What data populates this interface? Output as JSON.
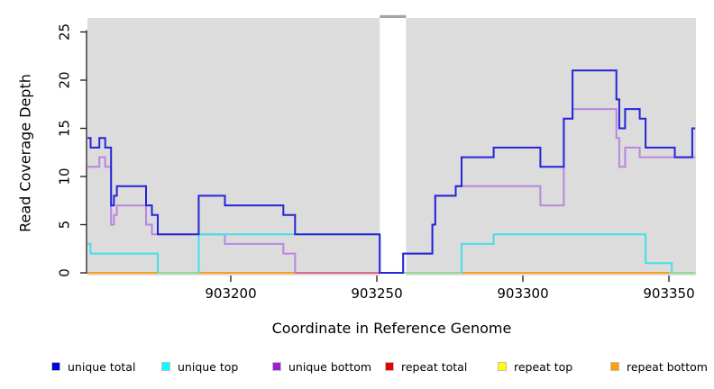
{
  "chart_data": {
    "type": "line",
    "subtype": "step",
    "title": "",
    "xlabel": "Coordinate in Reference Genome",
    "ylabel": "Read Coverage Depth",
    "xlim": [
      903151,
      903359
    ],
    "ylim": [
      0,
      26.5
    ],
    "x_ticks": [
      "903200",
      "903250",
      "903300",
      "903350"
    ],
    "x_tick_values": [
      903200,
      903250,
      903300,
      903350
    ],
    "y_ticks": [
      "0",
      "5",
      "10",
      "15",
      "20",
      "25"
    ],
    "y_tick_values": [
      0,
      5,
      10,
      15,
      20,
      25
    ],
    "grid": false,
    "plot_background": "#dcdcdc",
    "no_data_gap": {
      "from": 903251,
      "to": 903260,
      "top_edge_color": "#a3a3a3"
    },
    "legend_position": "bottom",
    "series": [
      {
        "name": "repeat total",
        "color": "#cc2020",
        "points": [
          [
            903151,
            0
          ],
          [
            903350,
            0
          ]
        ]
      },
      {
        "name": "repeat top",
        "color": "#f0e020",
        "points": [
          [
            903151,
            0
          ],
          [
            903350,
            0
          ]
        ]
      },
      {
        "name": "repeat bottom",
        "color": "#ff9d1e",
        "points": [
          [
            903151,
            0
          ],
          [
            903350,
            0
          ]
        ]
      },
      {
        "name": "unique bottom",
        "color": "#bb85e0",
        "points": [
          [
            903151,
            11
          ],
          [
            903155,
            12
          ],
          [
            903157,
            11
          ],
          [
            903159,
            5
          ],
          [
            903160,
            6
          ],
          [
            903161,
            7
          ],
          [
            903171,
            5
          ],
          [
            903173,
            4
          ],
          [
            903198,
            3
          ],
          [
            903218,
            2
          ],
          [
            903222,
            0
          ],
          [
            903259,
            2
          ],
          [
            903269,
            5
          ],
          [
            903270,
            8
          ],
          [
            903277,
            9
          ],
          [
            903306,
            7
          ],
          [
            903314,
            16
          ],
          [
            903317,
            17
          ],
          [
            903332,
            14
          ],
          [
            903333,
            11
          ],
          [
            903335,
            13
          ],
          [
            903340,
            12
          ],
          [
            903359,
            12
          ]
        ]
      },
      {
        "name": "unique top",
        "color": "#45dfe8",
        "points": [
          [
            903151,
            3
          ],
          [
            903152,
            2
          ],
          [
            903175,
            0
          ],
          [
            903189,
            4
          ],
          [
            903251,
            0
          ],
          [
            903279,
            3
          ],
          [
            903290,
            4
          ],
          [
            903342,
            1
          ],
          [
            903351,
            0
          ],
          [
            903359,
            0
          ]
        ]
      },
      {
        "name": "unique total",
        "color": "#2424d8",
        "points": [
          [
            903151,
            14
          ],
          [
            903152,
            13
          ],
          [
            903155,
            14
          ],
          [
            903157,
            13
          ],
          [
            903159,
            7
          ],
          [
            903160,
            8
          ],
          [
            903161,
            9
          ],
          [
            903171,
            7
          ],
          [
            903173,
            6
          ],
          [
            903175,
            4
          ],
          [
            903189,
            8
          ],
          [
            903198,
            7
          ],
          [
            903218,
            6
          ],
          [
            903222,
            4
          ],
          [
            903251,
            0
          ],
          [
            903259,
            2
          ],
          [
            903269,
            5
          ],
          [
            903270,
            8
          ],
          [
            903277,
            9
          ],
          [
            903279,
            12
          ],
          [
            903290,
            13
          ],
          [
            903306,
            11
          ],
          [
            903314,
            16
          ],
          [
            903317,
            21
          ],
          [
            903332,
            18
          ],
          [
            903333,
            15
          ],
          [
            903335,
            17
          ],
          [
            903340,
            16
          ],
          [
            903342,
            13
          ],
          [
            903352,
            12
          ],
          [
            903358,
            15
          ],
          [
            903359,
            15
          ]
        ]
      }
    ],
    "overlap_segments": [
      {
        "color": "#92d897",
        "value": 0,
        "segments": [
          [
            903175,
            903189
          ],
          [
            903259,
            903279
          ],
          [
            903350,
            903359
          ]
        ]
      },
      {
        "color": "#e06888",
        "value": 0,
        "segments": [
          [
            903222,
            903251
          ]
        ]
      }
    ],
    "legend": [
      {
        "label": "unique total",
        "color": "#0000e0"
      },
      {
        "label": "unique top",
        "color": "#00ffff"
      },
      {
        "label": "unique bottom",
        "color": "#9a1fd6"
      },
      {
        "label": "repeat total",
        "color": "#e80000"
      },
      {
        "label": "repeat top",
        "color": "#ffff00"
      },
      {
        "label": "repeat bottom",
        "color": "#ffa000"
      }
    ]
  }
}
